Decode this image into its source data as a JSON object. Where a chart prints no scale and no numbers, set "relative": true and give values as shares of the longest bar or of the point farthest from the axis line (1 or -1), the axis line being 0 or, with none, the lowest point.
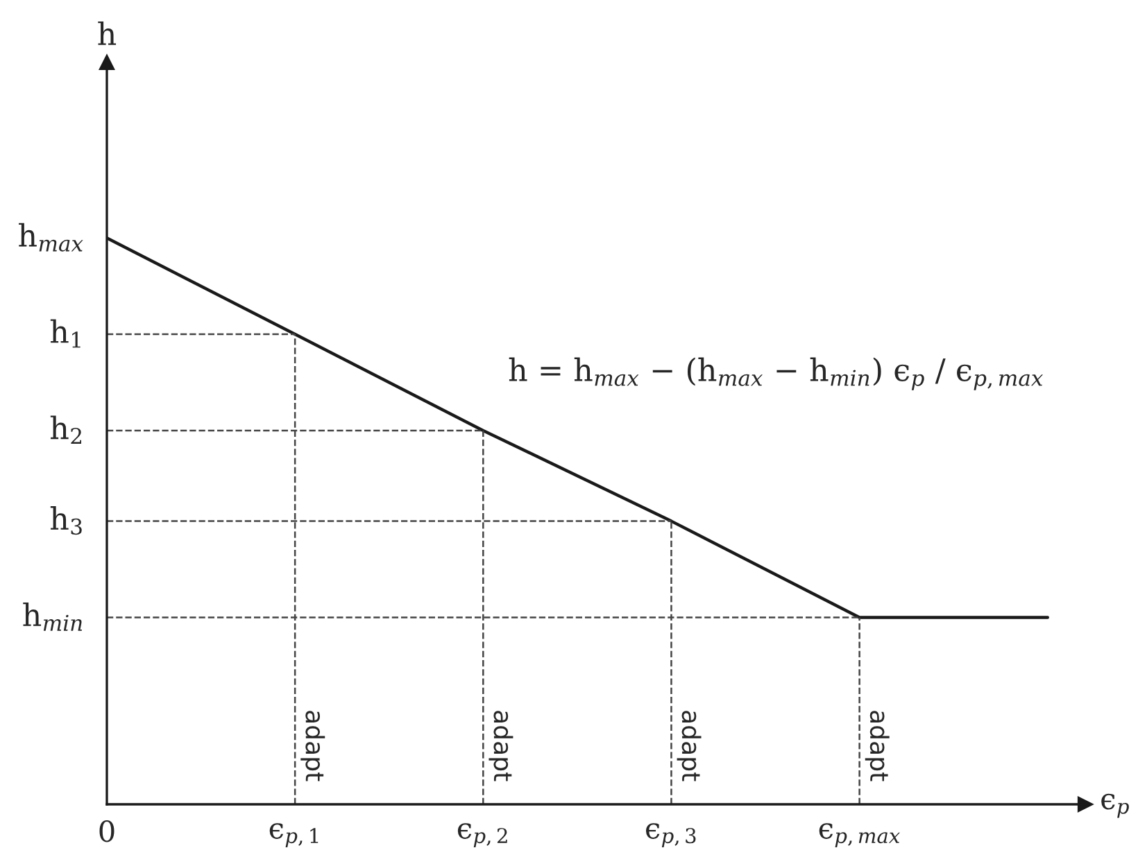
{
  "chart_data": {
    "type": "line",
    "relative": true,
    "xlabel": "ϵ$_{p}$",
    "categories": [
      "0",
      "ϵ$_{p,1}$",
      "ϵ$_{p,2}$",
      "ϵ$_{p,3}$",
      "ϵ$_{p,max}$",
      null
    ],
    "values": [
      1,
      0.83,
      0.66,
      0.5,
      0.33,
      0.33
    ],
    "color": "#1a1a1a",
    "ref_lines": [
      {
        "axis": "y",
        "value": 0.83,
        "label": "h$_{1}$",
        "line_style": "dashed",
        "color": "#444444"
      },
      {
        "axis": "y",
        "value": 0.66,
        "label": "h$_{2}$",
        "line_style": "dashed",
        "color": "#444444"
      },
      {
        "axis": "y",
        "value": 0.5,
        "label": "h$_{3}$",
        "line_style": "dashed",
        "color": "#444444"
      },
      {
        "axis": "y",
        "value": 0.33,
        "label": "h$_{min}$",
        "line_style": "dashed",
        "color": "#444444"
      },
      {
        "axis": "x",
        "value": "ϵ$_{p,1}$",
        "label": "adapt",
        "line_style": "dashed",
        "color": "#444444"
      },
      {
        "axis": "x",
        "value": "ϵ$_{p,2}$",
        "label": "adapt",
        "line_style": "dashed",
        "color": "#444444"
      },
      {
        "axis": "x",
        "value": "ϵ$_{p,3}$",
        "label": "adapt",
        "line_style": "dashed",
        "color": "#444444"
      },
      {
        "axis": "x",
        "value": "ϵ$_{p,max}$",
        "label": "adapt",
        "line_style": "dashed",
        "color": "#444444"
      }
    ],
    "annotations": [
      {
        "text": "h$_{max}$",
        "x": "0",
        "y": 1
      },
      "h",
      "h = h$_{max}$ − (h$_{max}$ − h$_{min}$) ϵ$_{p}$ / ϵ$_{p,max}$"
    ],
    "grid": false,
    "legend": false
  }
}
